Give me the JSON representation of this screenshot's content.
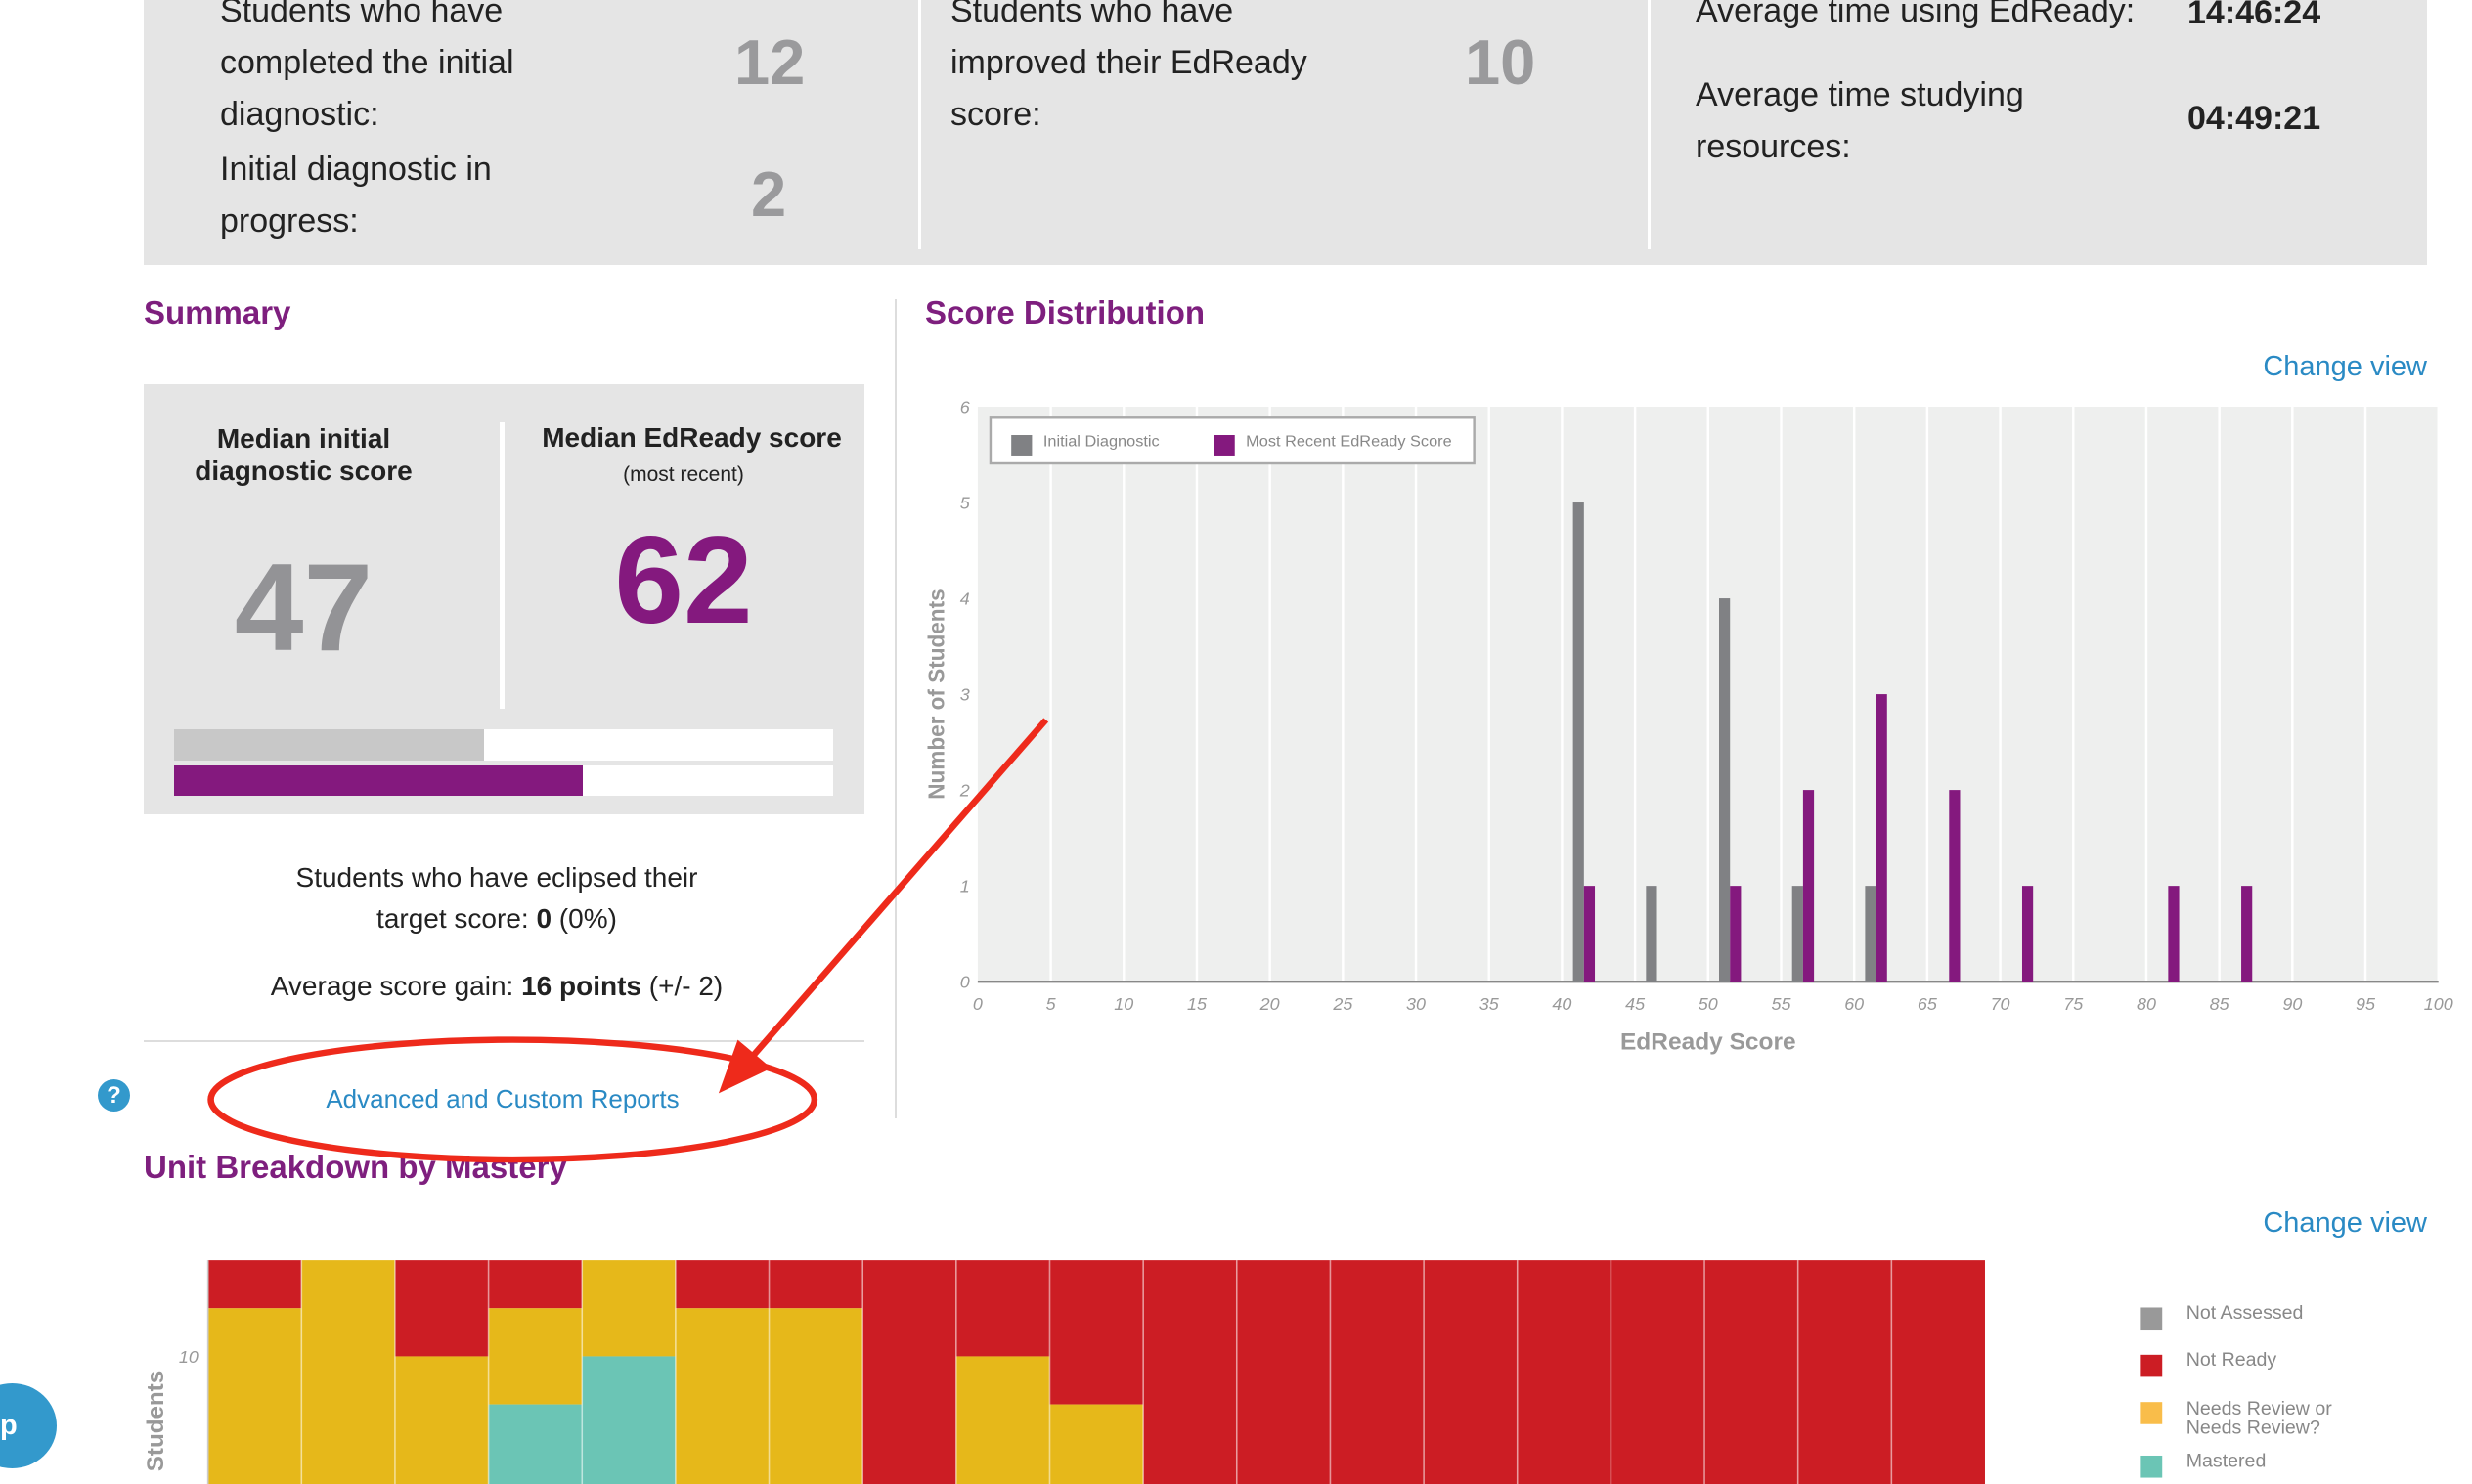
{
  "stats": {
    "completed_label": "Students who have completed the initial diagnostic:",
    "completed_value": "12",
    "in_progress_label": "Initial diagnostic in progress:",
    "in_progress_value": "2",
    "improved_label": "Students who have improved their EdReady score:",
    "improved_value": "10",
    "avg_time_label": "Average time using EdReady:",
    "avg_time_value": "14:46:24",
    "avg_study_label": "Average time studying resources:",
    "avg_study_value": "04:49:21"
  },
  "summary": {
    "title": "Summary",
    "median_initial_label": "Median initial diagnostic score",
    "median_initial_value": "47",
    "median_recent_label": "Median EdReady score",
    "median_recent_sub": "(most recent)",
    "median_recent_value": "62",
    "initial_bar_percent": 47,
    "recent_bar_percent": 62,
    "eclipsed_text_1": "Students who have eclipsed their",
    "eclipsed_text_2": "target score: ",
    "eclipsed_value": "0",
    "eclipsed_pct": " (0%)",
    "gain_label": "Average score gain: ",
    "gain_value": "16 points",
    "gain_range": " (+/- 2)",
    "reports_link": "Advanced and Custom Reports",
    "help_icon": "?"
  },
  "score_distribution": {
    "title": "Score Distribution",
    "change_view": "Change view"
  },
  "unit_breakdown": {
    "title": "Unit Breakdown by Mastery",
    "change_view": "Change view"
  },
  "colors": {
    "purple": "#84197e",
    "gray": "#808184",
    "not_assessed": "#999999",
    "not_ready": "#cc1d24",
    "needs_review": "#e6b81a",
    "mastered": "#6bc5b5",
    "link": "#2a8ac4",
    "annotation": "#ee2a1b"
  },
  "chart_data": [
    {
      "type": "bar",
      "title": "Score Distribution",
      "xlabel": "EdReady Score",
      "ylabel": "Number of Students",
      "xlim": [
        0,
        100
      ],
      "ylim": [
        0,
        6
      ],
      "x_ticks": [
        "0",
        "5",
        "10",
        "15",
        "20",
        "25",
        "30",
        "35",
        "40",
        "45",
        "50",
        "55",
        "60",
        "65",
        "70",
        "75",
        "80",
        "85",
        "90",
        "95",
        "100"
      ],
      "y_ticks": [
        "0",
        "1",
        "2",
        "3",
        "4",
        "5",
        "6"
      ],
      "legend": "top-left",
      "bins": [
        40,
        45,
        50,
        55,
        60,
        65,
        70,
        75,
        80,
        85
      ],
      "series": [
        {
          "name": "Initial Diagnostic",
          "values": [
            5,
            1,
            4,
            1,
            1,
            0,
            0,
            0,
            0,
            0
          ]
        },
        {
          "name": "Most Recent EdReady Score",
          "values": [
            1,
            0,
            1,
            2,
            3,
            2,
            1,
            0,
            1,
            1
          ]
        }
      ]
    },
    {
      "type": "bar",
      "title": "Unit Breakdown by Mastery",
      "ylabel": "Students",
      "y_ticks": [
        "10"
      ],
      "ylim": [
        0,
        12
      ],
      "stacked": true,
      "legend": "right",
      "legend_entries": [
        "Not Assessed",
        "Not Ready",
        "Needs Review  or Needs Review?",
        "Mastered"
      ],
      "columns": [
        {
          "not_ready": 1,
          "needs_review": 11,
          "mastered": 0
        },
        {
          "not_ready": 0,
          "needs_review": 12,
          "mastered": 0
        },
        {
          "not_ready": 2,
          "needs_review": 10,
          "mastered": 0
        },
        {
          "not_ready": 1,
          "needs_review": 2,
          "mastered": 9
        },
        {
          "not_ready": 0,
          "needs_review": 2,
          "mastered": 10
        },
        {
          "not_ready": 1,
          "needs_review": 11,
          "mastered": 0
        },
        {
          "not_ready": 1,
          "needs_review": 11,
          "mastered": 0
        },
        {
          "not_ready": 12,
          "needs_review": 0,
          "mastered": 0
        },
        {
          "not_ready": 2,
          "needs_review": 10,
          "mastered": 0
        },
        {
          "not_ready": 3,
          "needs_review": 9,
          "mastered": 0
        },
        {
          "not_ready": 12,
          "needs_review": 0,
          "mastered": 0
        },
        {
          "not_ready": 12,
          "needs_review": 0,
          "mastered": 0
        },
        {
          "not_ready": 12,
          "needs_review": 0,
          "mastered": 0
        },
        {
          "not_ready": 12,
          "needs_review": 0,
          "mastered": 0
        },
        {
          "not_ready": 12,
          "needs_review": 0,
          "mastered": 0
        },
        {
          "not_ready": 12,
          "needs_review": 0,
          "mastered": 0
        },
        {
          "not_ready": 12,
          "needs_review": 0,
          "mastered": 0
        },
        {
          "not_ready": 12,
          "needs_review": 0,
          "mastered": 0
        },
        {
          "not_ready": 12,
          "needs_review": 0,
          "mastered": 0
        }
      ]
    }
  ],
  "chat_button_label": "p"
}
